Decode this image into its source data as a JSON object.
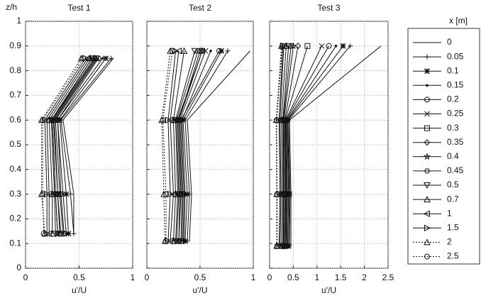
{
  "chart_data": {
    "type": "line",
    "ylabel": "z/h",
    "xlabel": "u'/U",
    "legend_title": "x  [m]",
    "ylim": [
      0,
      1
    ],
    "yticks": [
      0,
      0.1,
      0.2,
      0.3,
      0.4,
      0.5,
      0.6,
      0.7,
      0.8,
      0.9,
      1
    ],
    "grid": true,
    "color": "#111111",
    "series": [
      {
        "name": "0",
        "marker": "none",
        "dash": false
      },
      {
        "name": "0.05",
        "marker": "plus",
        "dash": false
      },
      {
        "name": "0.1",
        "marker": "asterisk",
        "dash": false
      },
      {
        "name": "0.15",
        "marker": "dot",
        "dash": false
      },
      {
        "name": "0.2",
        "marker": "circle",
        "dash": false
      },
      {
        "name": "0.25",
        "marker": "x",
        "dash": false
      },
      {
        "name": "0.3",
        "marker": "square",
        "dash": false
      },
      {
        "name": "0.35",
        "marker": "diamond",
        "dash": false
      },
      {
        "name": "0.4",
        "marker": "star",
        "dash": false
      },
      {
        "name": "0.45",
        "marker": "hexagon",
        "dash": false
      },
      {
        "name": "0.5",
        "marker": "tri-down",
        "dash": false
      },
      {
        "name": "0.7",
        "marker": "tri-up",
        "dash": false
      },
      {
        "name": "1",
        "marker": "tri-left",
        "dash": false
      },
      {
        "name": "1.5",
        "marker": "tri-right",
        "dash": false
      },
      {
        "name": "2",
        "marker": "tri-up",
        "dash": true
      },
      {
        "name": "2.5",
        "marker": "circle",
        "dash": true
      }
    ],
    "panels": [
      {
        "title": "Test 1",
        "xlim": [
          0,
          1
        ],
        "xticks": [
          0,
          0.5,
          1
        ],
        "z": [
          0.14,
          0.3,
          0.6,
          0.85
        ],
        "values": [
          [
            0.45,
            0.45,
            0.35,
            0.82
          ],
          [
            0.45,
            0.42,
            0.33,
            0.8
          ],
          [
            0.4,
            0.38,
            0.32,
            0.75
          ],
          [
            0.38,
            0.35,
            0.3,
            0.72
          ],
          [
            0.36,
            0.33,
            0.3,
            0.68
          ],
          [
            0.35,
            0.32,
            0.28,
            0.67
          ],
          [
            0.33,
            0.3,
            0.27,
            0.66
          ],
          [
            0.32,
            0.3,
            0.26,
            0.65
          ],
          [
            0.3,
            0.28,
            0.25,
            0.64
          ],
          [
            0.3,
            0.28,
            0.25,
            0.62
          ],
          [
            0.28,
            0.27,
            0.24,
            0.62
          ],
          [
            0.25,
            0.25,
            0.22,
            0.6
          ],
          [
            0.22,
            0.22,
            0.2,
            0.58
          ],
          [
            0.2,
            0.2,
            0.18,
            0.56
          ],
          [
            0.18,
            0.15,
            0.15,
            0.52
          ],
          [
            0.17,
            0.16,
            0.16,
            0.54
          ]
        ]
      },
      {
        "title": "Test 2",
        "xlim": [
          0,
          1
        ],
        "xticks": [
          0,
          0.5,
          1
        ],
        "z": [
          0.11,
          0.3,
          0.6,
          0.88
        ],
        "values": [
          [
            0.4,
            0.42,
            0.38,
            0.97
          ],
          [
            0.38,
            0.4,
            0.36,
            0.76
          ],
          [
            0.36,
            0.38,
            0.34,
            0.7
          ],
          [
            0.35,
            0.36,
            0.33,
            0.6
          ],
          [
            0.34,
            0.35,
            0.32,
            0.68
          ],
          [
            0.33,
            0.34,
            0.31,
            0.55
          ],
          [
            0.32,
            0.33,
            0.3,
            0.52
          ],
          [
            0.3,
            0.32,
            0.3,
            0.5
          ],
          [
            0.3,
            0.31,
            0.29,
            0.52
          ],
          [
            0.28,
            0.3,
            0.28,
            0.48
          ],
          [
            0.27,
            0.29,
            0.27,
            0.45
          ],
          [
            0.25,
            0.27,
            0.25,
            0.35
          ],
          [
            0.22,
            0.25,
            0.22,
            0.3
          ],
          [
            0.2,
            0.22,
            0.2,
            0.27
          ],
          [
            0.17,
            0.16,
            0.14,
            0.22
          ],
          [
            0.18,
            0.18,
            0.15,
            0.24
          ]
        ]
      },
      {
        "title": "Test 3",
        "xlim": [
          0,
          2.5
        ],
        "xticks": [
          0,
          0.5,
          1,
          1.5,
          2,
          2.5
        ],
        "z": [
          0.09,
          0.3,
          0.6,
          0.9
        ],
        "values": [
          [
            0.45,
            0.45,
            0.42,
            2.35
          ],
          [
            0.42,
            0.43,
            0.4,
            1.7
          ],
          [
            0.4,
            0.42,
            0.38,
            1.55
          ],
          [
            0.38,
            0.4,
            0.37,
            1.4
          ],
          [
            0.36,
            0.38,
            0.35,
            1.25
          ],
          [
            0.35,
            0.36,
            0.34,
            1.1
          ],
          [
            0.33,
            0.35,
            0.33,
            0.8
          ],
          [
            0.32,
            0.34,
            0.32,
            0.6
          ],
          [
            0.3,
            0.32,
            0.3,
            0.5
          ],
          [
            0.29,
            0.3,
            0.29,
            0.45
          ],
          [
            0.28,
            0.29,
            0.28,
            0.4
          ],
          [
            0.25,
            0.27,
            0.25,
            0.35
          ],
          [
            0.22,
            0.24,
            0.22,
            0.3
          ],
          [
            0.2,
            0.22,
            0.2,
            0.28
          ],
          [
            0.15,
            0.15,
            0.14,
            0.25
          ],
          [
            0.16,
            0.16,
            0.15,
            0.27
          ]
        ]
      }
    ]
  }
}
